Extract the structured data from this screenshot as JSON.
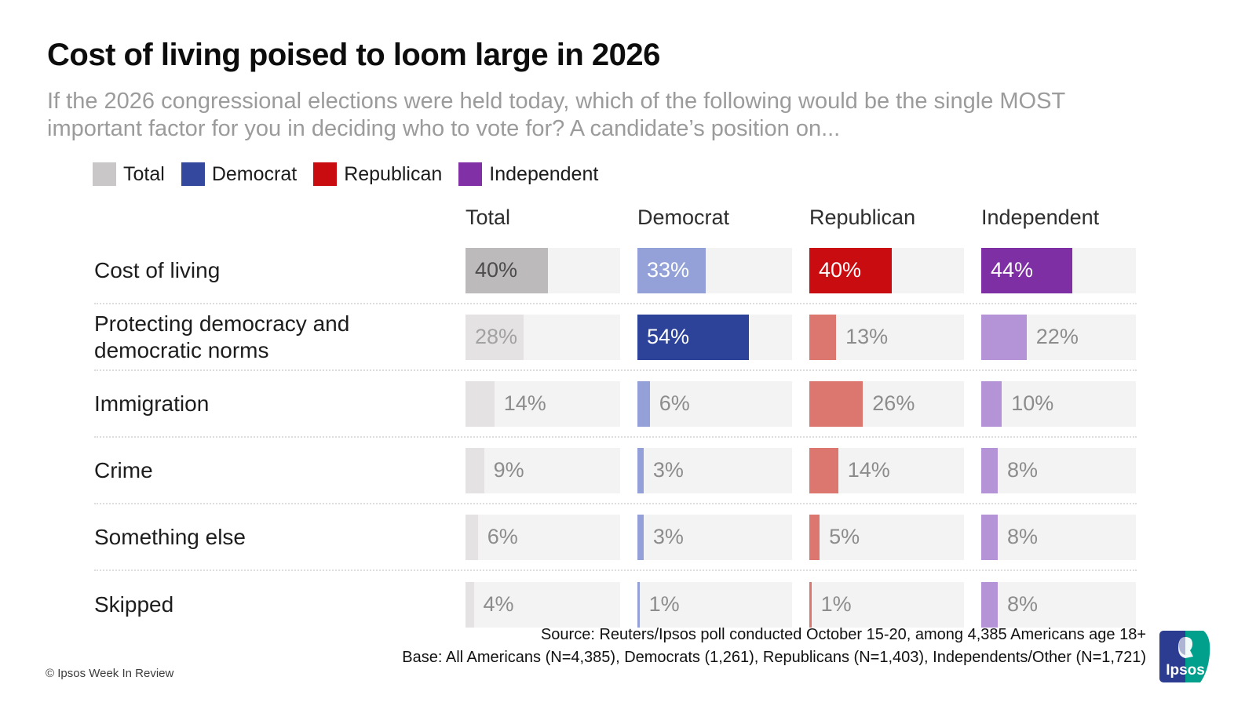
{
  "title": "Cost of living poised to loom large in 2026",
  "subtitle": "If the 2026 congressional elections were held today, which of the following would be the single MOST important factor for you in deciding who to vote for? A candidate’s position on...",
  "legend": [
    {
      "label": "Total",
      "color": "#c9c7c8"
    },
    {
      "label": "Democrat",
      "color": "#34489e"
    },
    {
      "label": "Republican",
      "color": "#c90c0f"
    },
    {
      "label": "Independent",
      "color": "#8230a6"
    }
  ],
  "chart_data": {
    "type": "bar",
    "categories": [
      "Cost of living",
      "Protecting democracy and democratic norms",
      "Immigration",
      "Crime",
      "Something else",
      "Skipped"
    ],
    "series": [
      {
        "key": "total",
        "name": "Total",
        "values": [
          40,
          28,
          14,
          9,
          6,
          4
        ]
      },
      {
        "key": "democrat",
        "name": "Democrat",
        "values": [
          33,
          54,
          6,
          3,
          3,
          1
        ]
      },
      {
        "key": "republican",
        "name": "Republican",
        "values": [
          40,
          13,
          26,
          14,
          5,
          1
        ]
      },
      {
        "key": "independent",
        "name": "Independent",
        "values": [
          44,
          22,
          10,
          8,
          8,
          8
        ]
      }
    ],
    "unit": "%",
    "scale_max": 75,
    "inside_label_min_value": 27,
    "colors": {
      "total": {
        "full": "#bcbabb",
        "muted": "#e4e2e3",
        "label_full": "#4c4c4c",
        "label_muted": "#a2a2a2"
      },
      "democrat": {
        "full": "#2d4399",
        "muted": "#93a1d8",
        "label_full": "#ffffff",
        "label_muted": "#ffffff"
      },
      "republican": {
        "full": "#c90c0f",
        "muted": "#dc776f",
        "label_full": "#ffffff",
        "label_muted": "#ffffff"
      },
      "independent": {
        "full": "#7e2fa3",
        "muted": "#b493d6",
        "label_full": "#ffffff",
        "label_muted": "#ffffff"
      }
    },
    "track_color": "#f4f3f4",
    "outside_label_color": "#8c8c8c",
    "legend_position": "top",
    "grid": "dotted row separators"
  },
  "footer": {
    "source": "Source: Reuters/Ipsos poll conducted October 15-20, among 4,385 Americans age 18+",
    "base": "Base:  All Americans (N=4,385), Democrats (1,261), Republicans (N=1,403), Independents/Other (N=1,721)",
    "copyright": "© Ipsos Week In Review"
  },
  "logo": {
    "text": "Ipsos",
    "blue": "#2c3c90",
    "teal": "#00a08c"
  }
}
